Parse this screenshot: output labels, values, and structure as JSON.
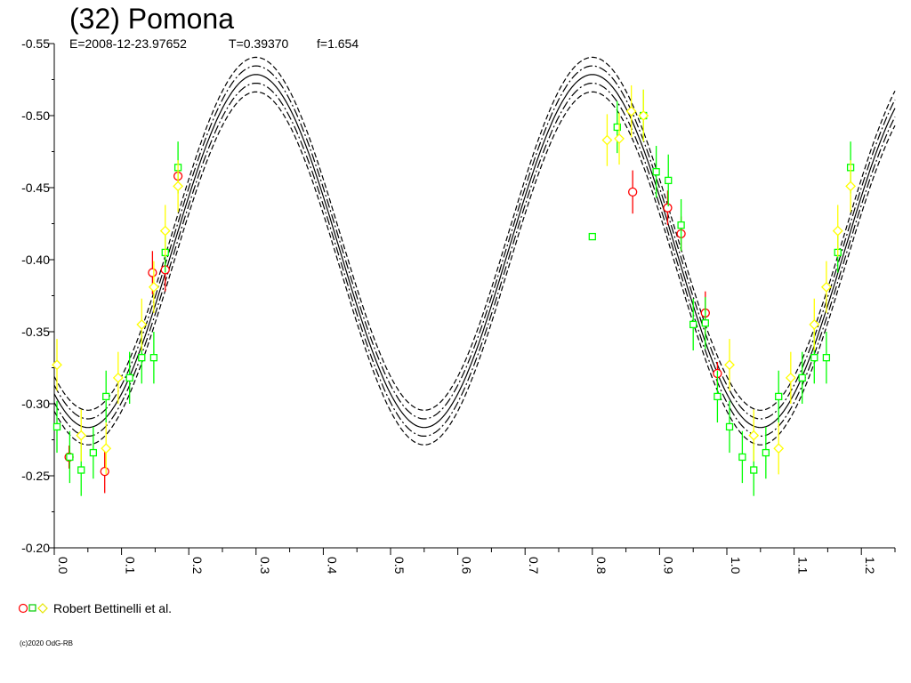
{
  "title": "(32) Pomona",
  "subtitle": {
    "epoch": "E=2008-12-23.97652",
    "period": "T=0.39370",
    "f": "f=1.654"
  },
  "legend": {
    "label": "Robert Bettinelli et al."
  },
  "copyright": "(c)2020 OdG-RB",
  "chart_data": {
    "type": "scatter",
    "xlim": [
      0,
      1.25
    ],
    "ylim": [
      -0.55,
      -0.2
    ],
    "yaxis_inverted": true,
    "xticks": [
      "0.0",
      "0.1",
      "0.2",
      "0.3",
      "0.4",
      "0.5",
      "0.6",
      "0.7",
      "0.8",
      "0.9",
      "1.0",
      "1.1",
      "1.2"
    ],
    "yticks": [
      "-0.55",
      "-0.50",
      "-0.45",
      "-0.40",
      "-0.35",
      "-0.30",
      "-0.25",
      "-0.20"
    ],
    "model": {
      "mean": -0.406,
      "amplitude": 0.1225,
      "max_phase": 0.3,
      "period_phase": 0.5,
      "offsets": [
        0.012,
        0.006,
        0,
        -0.006,
        -0.012
      ]
    },
    "colors": {
      "red": "#ff0000",
      "green": "#00ff00",
      "yellow": "#ffff00",
      "curve": "#000000"
    },
    "series": [
      {
        "marker": "circle",
        "color": "#ff0000",
        "points": [
          {
            "x": 0.022,
            "y": -0.263,
            "e": 0.008
          },
          {
            "x": 0.075,
            "y": -0.253,
            "e": 0.015
          },
          {
            "x": 0.146,
            "y": -0.391,
            "e": 0.015
          },
          {
            "x": 0.165,
            "y": -0.393,
            "e": 0.015
          },
          {
            "x": 0.184,
            "y": -0.458,
            "e": 0.006
          },
          {
            "x": 0.86,
            "y": -0.447,
            "e": 0.015
          },
          {
            "x": 0.912,
            "y": -0.436,
            "e": 0.012
          },
          {
            "x": 0.932,
            "y": -0.418,
            "e": 0.012
          },
          {
            "x": 0.968,
            "y": -0.363,
            "e": 0.015
          },
          {
            "x": 0.986,
            "y": -0.321,
            "e": 0.008
          }
        ]
      },
      {
        "marker": "square",
        "color": "#00ff00",
        "points": [
          {
            "x": 0.004,
            "y": -0.284,
            "e": 0.018
          },
          {
            "x": 0.023,
            "y": -0.263,
            "e": 0.018
          },
          {
            "x": 0.04,
            "y": -0.254,
            "e": 0.018
          },
          {
            "x": 0.058,
            "y": -0.266,
            "e": 0.018
          },
          {
            "x": 0.077,
            "y": -0.305,
            "e": 0.018
          },
          {
            "x": 0.112,
            "y": -0.318,
            "e": 0.018
          },
          {
            "x": 0.13,
            "y": -0.332,
            "e": 0.018
          },
          {
            "x": 0.148,
            "y": -0.332,
            "e": 0.018
          },
          {
            "x": 0.165,
            "y": -0.405,
            "e": 0.014
          },
          {
            "x": 0.184,
            "y": -0.464,
            "e": 0.018
          },
          {
            "x": 0.8,
            "y": -0.416,
            "e": 0.0
          },
          {
            "x": 0.837,
            "y": -0.492,
            "e": 0.018
          },
          {
            "x": 0.876,
            "y": -0.5,
            "e": 0.018
          },
          {
            "x": 0.895,
            "y": -0.461,
            "e": 0.018
          },
          {
            "x": 0.913,
            "y": -0.455,
            "e": 0.018
          },
          {
            "x": 0.932,
            "y": -0.424,
            "e": 0.018
          },
          {
            "x": 0.95,
            "y": -0.355,
            "e": 0.018
          },
          {
            "x": 0.968,
            "y": -0.356,
            "e": 0.018
          },
          {
            "x": 0.986,
            "y": -0.305,
            "e": 0.018
          },
          {
            "x": 1.004,
            "y": -0.284,
            "e": 0.018
          },
          {
            "x": 1.023,
            "y": -0.263,
            "e": 0.018
          },
          {
            "x": 1.04,
            "y": -0.254,
            "e": 0.018
          },
          {
            "x": 1.058,
            "y": -0.266,
            "e": 0.018
          },
          {
            "x": 1.077,
            "y": -0.305,
            "e": 0.018
          },
          {
            "x": 1.112,
            "y": -0.318,
            "e": 0.018
          },
          {
            "x": 1.13,
            "y": -0.332,
            "e": 0.018
          },
          {
            "x": 1.148,
            "y": -0.332,
            "e": 0.018
          },
          {
            "x": 1.165,
            "y": -0.405,
            "e": 0.014
          },
          {
            "x": 1.184,
            "y": -0.464,
            "e": 0.018
          }
        ]
      },
      {
        "marker": "diamond",
        "color": "#ffff00",
        "points": [
          {
            "x": 0.004,
            "y": -0.327,
            "e": 0.018
          },
          {
            "x": 0.04,
            "y": -0.278,
            "e": 0.018
          },
          {
            "x": 0.077,
            "y": -0.269,
            "e": 0.018
          },
          {
            "x": 0.095,
            "y": -0.318,
            "e": 0.018
          },
          {
            "x": 0.13,
            "y": -0.355,
            "e": 0.018
          },
          {
            "x": 0.148,
            "y": -0.381,
            "e": 0.018
          },
          {
            "x": 0.165,
            "y": -0.42,
            "e": 0.018
          },
          {
            "x": 0.184,
            "y": -0.451,
            "e": 0.018
          },
          {
            "x": 0.822,
            "y": -0.483,
            "e": 0.018
          },
          {
            "x": 0.84,
            "y": -0.484,
            "e": 0.018
          },
          {
            "x": 0.858,
            "y": -0.503,
            "e": 0.018
          },
          {
            "x": 0.876,
            "y": -0.5,
            "e": 0.018
          },
          {
            "x": 1.004,
            "y": -0.327,
            "e": 0.018
          },
          {
            "x": 1.04,
            "y": -0.278,
            "e": 0.018
          },
          {
            "x": 1.077,
            "y": -0.269,
            "e": 0.018
          },
          {
            "x": 1.095,
            "y": -0.318,
            "e": 0.018
          },
          {
            "x": 1.13,
            "y": -0.355,
            "e": 0.018
          },
          {
            "x": 1.148,
            "y": -0.381,
            "e": 0.018
          },
          {
            "x": 1.165,
            "y": -0.42,
            "e": 0.018
          },
          {
            "x": 1.184,
            "y": -0.451,
            "e": 0.018
          }
        ]
      }
    ]
  }
}
